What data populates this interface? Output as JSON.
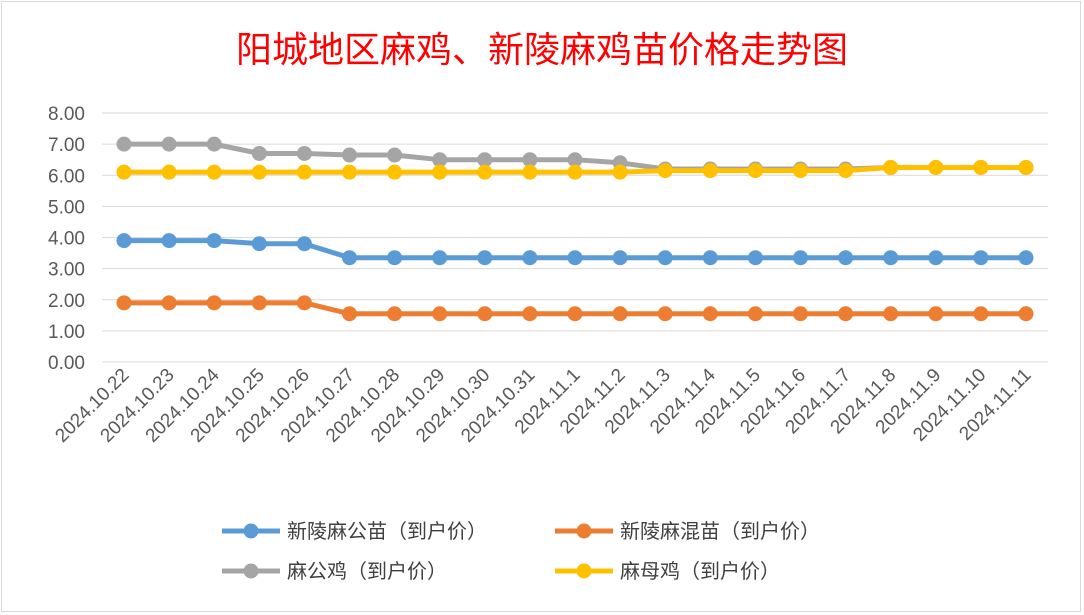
{
  "chart_data": {
    "type": "line",
    "title": "阳城地区麻鸡、新陵麻鸡苗价格走势图",
    "xlabel": "",
    "ylabel": "",
    "ylim": [
      0,
      8
    ],
    "yticks": [
      "0.00",
      "1.00",
      "2.00",
      "3.00",
      "4.00",
      "5.00",
      "6.00",
      "7.00",
      "8.00"
    ],
    "grid": true,
    "legend_position": "bottom",
    "categories": [
      "2024.10.22",
      "2024.10.23",
      "2024.10.24",
      "2024.10.25",
      "2024.10.26",
      "2024.10.27",
      "2024.10.28",
      "2024.10.29",
      "2024.10.30",
      "2024.10.31",
      "2024.11.1",
      "2024.11.2",
      "2024.11.3",
      "2024.11.4",
      "2024.11.5",
      "2024.11.6",
      "2024.11.7",
      "2024.11.8",
      "2024.11.9",
      "2024.11.10",
      "2024.11.11"
    ],
    "series": [
      {
        "name": "新陵麻公苗（到户价）",
        "color": "#5b9bd5",
        "values": [
          3.9,
          3.9,
          3.9,
          3.8,
          3.8,
          3.35,
          3.35,
          3.35,
          3.35,
          3.35,
          3.35,
          3.35,
          3.35,
          3.35,
          3.35,
          3.35,
          3.35,
          3.35,
          3.35,
          3.35,
          3.35
        ]
      },
      {
        "name": "新陵麻混苗（到户价）",
        "color": "#ed7d31",
        "values": [
          1.9,
          1.9,
          1.9,
          1.9,
          1.9,
          1.55,
          1.55,
          1.55,
          1.55,
          1.55,
          1.55,
          1.55,
          1.55,
          1.55,
          1.55,
          1.55,
          1.55,
          1.55,
          1.55,
          1.55,
          1.55
        ]
      },
      {
        "name": "麻公鸡（到户价）",
        "color": "#a5a5a5",
        "values": [
          7.0,
          7.0,
          7.0,
          6.7,
          6.7,
          6.65,
          6.65,
          6.5,
          6.5,
          6.5,
          6.5,
          6.4,
          6.2,
          6.2,
          6.2,
          6.2,
          6.2,
          6.25,
          6.25,
          6.25,
          6.25
        ]
      },
      {
        "name": "麻母鸡（到户价）",
        "color": "#ffc000",
        "values": [
          6.1,
          6.1,
          6.1,
          6.1,
          6.1,
          6.1,
          6.1,
          6.1,
          6.1,
          6.1,
          6.1,
          6.1,
          6.15,
          6.15,
          6.15,
          6.15,
          6.15,
          6.25,
          6.25,
          6.25,
          6.25
        ]
      }
    ]
  }
}
